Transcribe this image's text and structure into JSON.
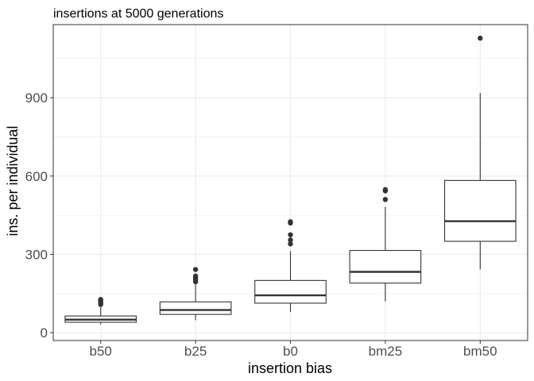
{
  "chart_data": {
    "type": "boxplot",
    "title": "insertions at 5000 generations",
    "xlabel": "insertion bias",
    "ylabel": "ins. per individual",
    "ylim": [
      -30,
      1180
    ],
    "yticks": [
      0,
      300,
      600,
      900
    ],
    "grid": true,
    "theme": "bw",
    "categories": [
      "b50",
      "b25",
      "b0",
      "bm25",
      "bm50"
    ],
    "boxes": [
      {
        "category": "b50",
        "whisker_low": 32,
        "q1": 40,
        "median": 50,
        "q3": 64,
        "whisker_high": 98,
        "outliers": [
          108,
          113,
          118,
          123,
          127
        ]
      },
      {
        "category": "b25",
        "whisker_low": 48,
        "q1": 70,
        "median": 87,
        "q3": 118,
        "whisker_high": 185,
        "outliers": [
          195,
          203,
          210,
          217,
          242
        ]
      },
      {
        "category": "b0",
        "whisker_low": 80,
        "q1": 113,
        "median": 143,
        "q3": 200,
        "whisker_high": 312,
        "outliers": [
          340,
          355,
          375,
          420,
          425
        ]
      },
      {
        "category": "bm25",
        "whisker_low": 120,
        "q1": 190,
        "median": 233,
        "q3": 315,
        "whisker_high": 482,
        "outliers": [
          510,
          543,
          548
        ]
      },
      {
        "category": "bm50",
        "whisker_low": 242,
        "q1": 350,
        "median": 427,
        "q3": 583,
        "whisker_high": 918,
        "outliers": [
          1128
        ]
      }
    ],
    "colors": {
      "box_stroke": "#333333",
      "outlier": "#333333",
      "grid": "#ebebeb",
      "panel_border": "#333333"
    }
  }
}
